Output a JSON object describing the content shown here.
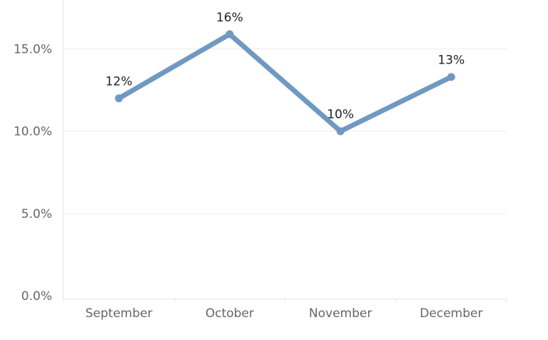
{
  "chart_data": {
    "type": "line",
    "title": "",
    "xlabel": "",
    "ylabel": "",
    "categories": [
      "September",
      "October",
      "November",
      "December"
    ],
    "series": [
      {
        "values": [
          12.0,
          15.9,
          10.0,
          13.3
        ],
        "data_labels": [
          "12%",
          "16%",
          "10%",
          "13%"
        ],
        "color": "#7099c2"
      }
    ],
    "ylim": [
      0,
      18.5
    ],
    "y_ticks": [
      {
        "value": 0,
        "label": "0.0%"
      },
      {
        "value": 5,
        "label": "5.0%"
      },
      {
        "value": 10,
        "label": "10.0%"
      },
      {
        "value": 15,
        "label": "15.0%"
      }
    ],
    "grid": true,
    "legend": "none"
  }
}
